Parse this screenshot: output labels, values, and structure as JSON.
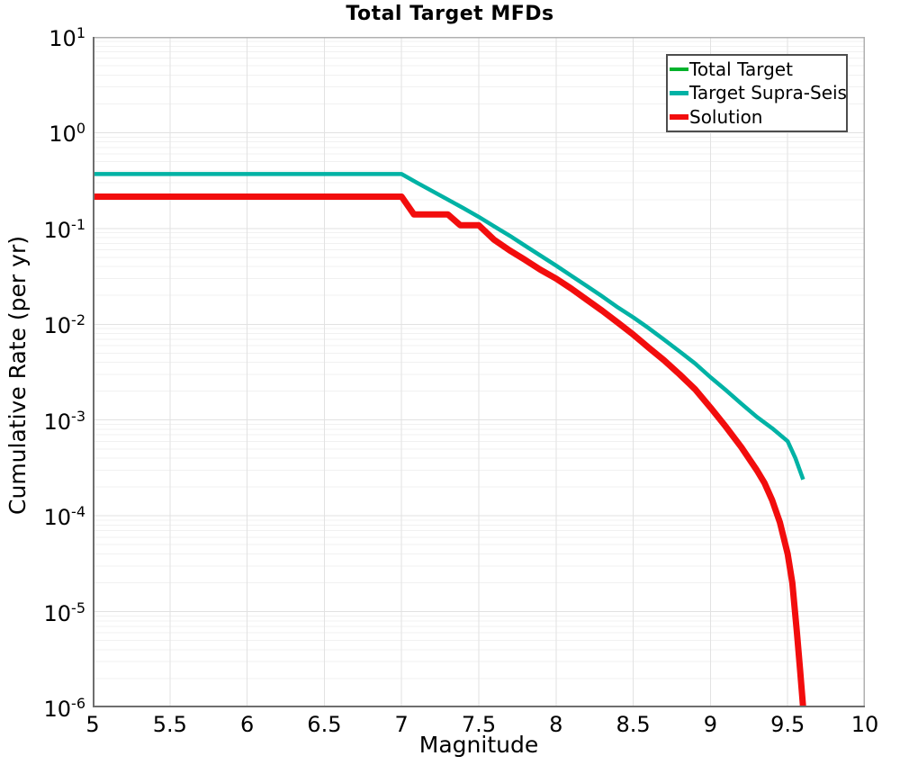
{
  "chart": {
    "title": "Total Target MFDs",
    "x_axis": {
      "label": "Magnitude",
      "range": [
        5,
        10
      ],
      "tick_labels": [
        "5",
        "5.5",
        "6",
        "6.5",
        "7",
        "7.5",
        "8",
        "8.5",
        "9",
        "9.5",
        "10"
      ],
      "tick_values": [
        5,
        5.5,
        6,
        6.5,
        7,
        7.5,
        8,
        8.5,
        9,
        9.5,
        10
      ]
    },
    "y_axis": {
      "label": "Cumulative Rate (per yr)",
      "scale": "log",
      "range": [
        1e-06,
        10
      ],
      "tick_exponents": [
        1,
        0,
        -1,
        -2,
        -3,
        -4,
        -5,
        -6
      ]
    },
    "legend": {
      "position": "top-right",
      "items": [
        {
          "label": "Total Target"
        },
        {
          "label": "Target Supra-Seis"
        },
        {
          "label": "Solution"
        }
      ]
    }
  },
  "colors": {
    "total_target": "#00B22C",
    "target_supra_seis": "#00B2A5",
    "solution": "#F20D0D",
    "grid_major": "#e2e2e2",
    "grid_minor": "#f1f1f1",
    "axis_line": "#6e6e6e",
    "outline": "#b0b0b0",
    "legend_border": "#4d4d4d"
  },
  "chart_data": {
    "type": "line",
    "title": "Total Target MFDs",
    "xlabel": "Magnitude",
    "ylabel": "Cumulative Rate (per yr)",
    "x_range": [
      5,
      10
    ],
    "y_scale": "log",
    "y_range": [
      1e-06,
      10
    ],
    "grid": true,
    "legend_position": "top-right",
    "series": [
      {
        "name": "Total Target",
        "color": "#00B22C",
        "width": 4,
        "x": [
          5.0,
          7.0,
          7.1,
          7.2,
          7.3,
          7.4,
          7.5,
          7.6,
          7.7,
          7.8,
          7.9,
          8.0,
          8.1,
          8.2,
          8.3,
          8.4,
          8.5,
          8.6,
          8.7,
          8.8,
          8.9,
          9.0,
          9.1,
          9.2,
          9.3,
          9.4,
          9.5,
          9.55,
          9.6
        ],
        "y": [
          0.37,
          0.37,
          0.3,
          0.245,
          0.2,
          0.163,
          0.132,
          0.105,
          0.084,
          0.066,
          0.052,
          0.041,
          0.032,
          0.025,
          0.0195,
          0.015,
          0.0118,
          0.0091,
          0.0069,
          0.0052,
          0.0039,
          0.0028,
          0.00205,
          0.00148,
          0.00108,
          0.00082,
          0.0006,
          0.0004,
          0.00024
        ]
      },
      {
        "name": "Target Supra-Seis",
        "color": "#00B2A5",
        "width": 4.5,
        "x": [
          5.0,
          7.0,
          7.1,
          7.2,
          7.3,
          7.4,
          7.5,
          7.6,
          7.7,
          7.8,
          7.9,
          8.0,
          8.1,
          8.2,
          8.3,
          8.4,
          8.5,
          8.6,
          8.7,
          8.8,
          8.9,
          9.0,
          9.1,
          9.2,
          9.3,
          9.4,
          9.5,
          9.55,
          9.6
        ],
        "y": [
          0.37,
          0.37,
          0.3,
          0.245,
          0.2,
          0.163,
          0.132,
          0.105,
          0.084,
          0.066,
          0.052,
          0.041,
          0.032,
          0.025,
          0.0195,
          0.015,
          0.0118,
          0.0091,
          0.0069,
          0.0052,
          0.0039,
          0.0028,
          0.00205,
          0.00148,
          0.00108,
          0.00082,
          0.0006,
          0.0004,
          0.00024
        ]
      },
      {
        "name": "Solution",
        "color": "#F20D0D",
        "width": 7,
        "x": [
          5.0,
          7.0,
          7.08,
          7.3,
          7.38,
          7.5,
          7.6,
          7.7,
          7.8,
          7.9,
          8.0,
          8.1,
          8.2,
          8.3,
          8.4,
          8.5,
          8.6,
          8.7,
          8.8,
          8.9,
          9.0,
          9.1,
          9.2,
          9.3,
          9.35,
          9.4,
          9.45,
          9.5,
          9.53,
          9.56,
          9.58,
          9.6
        ],
        "y": [
          0.215,
          0.215,
          0.14,
          0.14,
          0.108,
          0.108,
          0.076,
          0.059,
          0.047,
          0.037,
          0.03,
          0.0235,
          0.018,
          0.0138,
          0.0104,
          0.0078,
          0.0057,
          0.0042,
          0.003,
          0.0021,
          0.00135,
          0.00085,
          0.00052,
          0.0003,
          0.00022,
          0.000145,
          8.5e-05,
          4e-05,
          2e-05,
          6e-06,
          2.5e-06,
          1e-06
        ]
      }
    ]
  }
}
